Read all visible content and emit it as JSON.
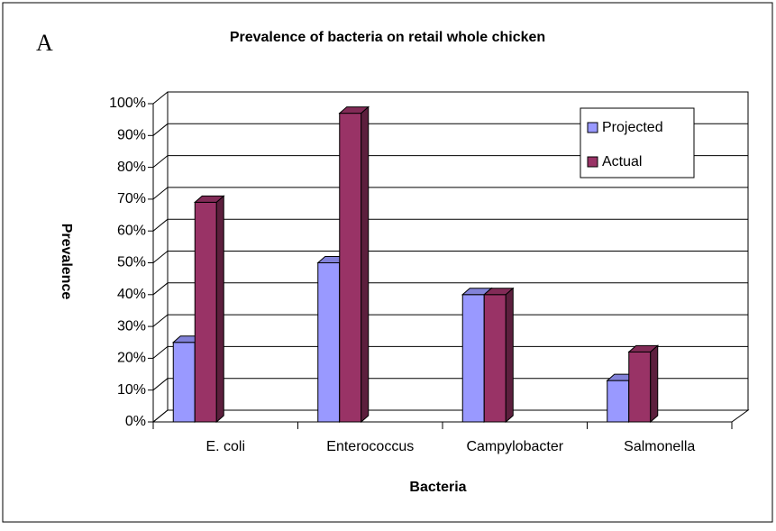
{
  "chart_data": {
    "type": "bar3d",
    "title": "Prevalence of bacteria on retail whole chicken",
    "annotation": "A",
    "xlabel": "Bacteria",
    "ylabel": "Prevalence",
    "categories": [
      "E. coli",
      "Enterococcus",
      "Campylobacter",
      "Salmonella"
    ],
    "series": [
      {
        "name": "Projected",
        "color": "#9999ff",
        "values": [
          25,
          50,
          40,
          13
        ]
      },
      {
        "name": "Actual",
        "color": "#993366",
        "values": [
          69,
          97,
          40,
          22
        ]
      }
    ],
    "ylim": [
      0,
      100
    ],
    "yticks": [
      {
        "value": 0,
        "label": "0%"
      },
      {
        "value": 10,
        "label": "10%"
      },
      {
        "value": 20,
        "label": "20%"
      },
      {
        "value": 30,
        "label": "30%"
      },
      {
        "value": 40,
        "label": "40%"
      },
      {
        "value": 50,
        "label": "50%"
      },
      {
        "value": 60,
        "label": "60%"
      },
      {
        "value": 70,
        "label": "70%"
      },
      {
        "value": 80,
        "label": "80%"
      },
      {
        "value": 90,
        "label": "90%"
      },
      {
        "value": 100,
        "label": "100%"
      }
    ],
    "grid": true,
    "legend": "upper right"
  }
}
